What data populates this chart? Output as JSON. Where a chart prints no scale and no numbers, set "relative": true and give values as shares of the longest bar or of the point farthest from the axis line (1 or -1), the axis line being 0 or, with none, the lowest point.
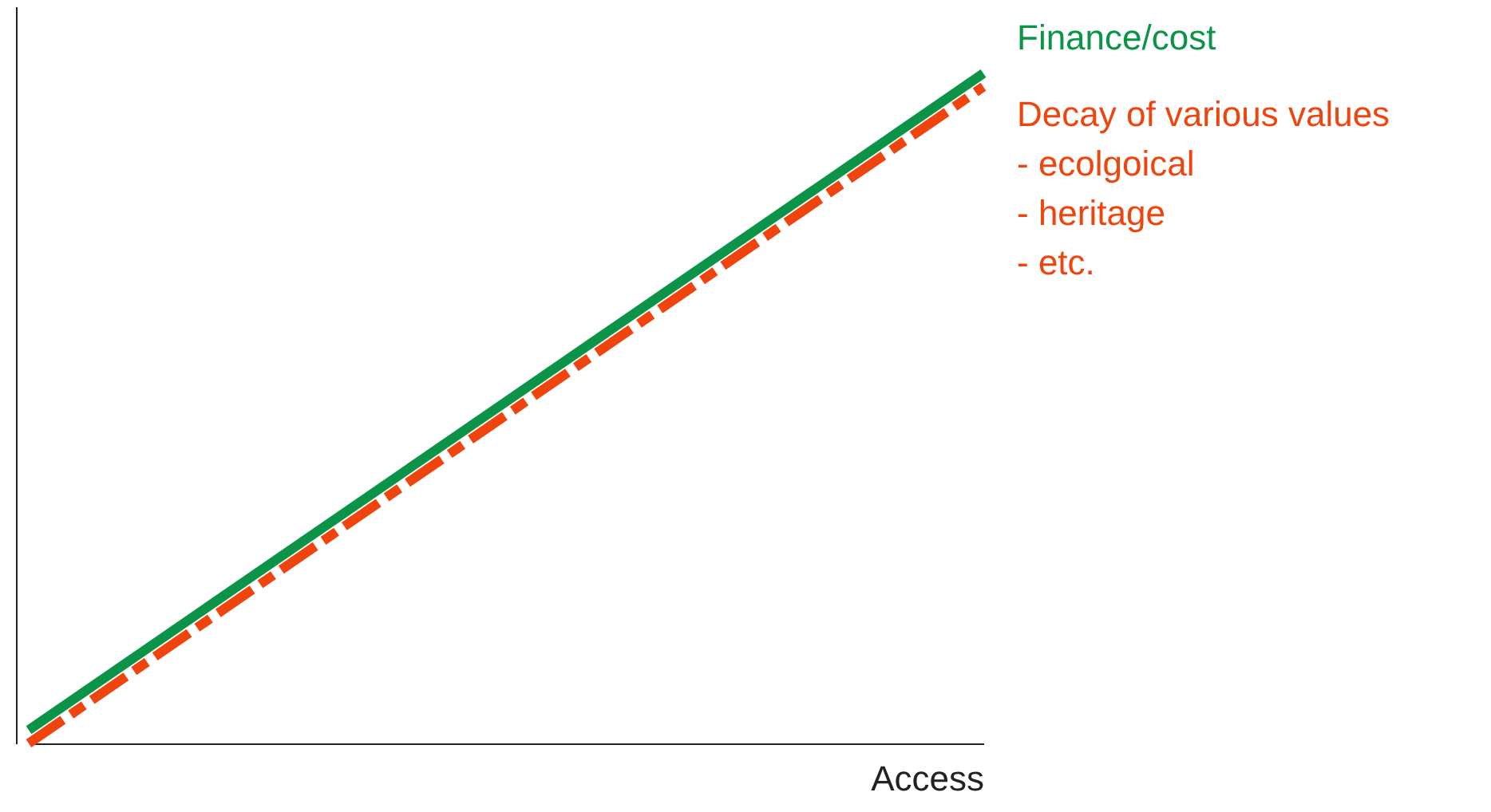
{
  "chart_data": {
    "type": "line",
    "relative": true,
    "xlabel": "Access",
    "categories": [
      null,
      null
    ],
    "series": [
      {
        "name": "Finance/cost",
        "color": "#0b9447",
        "values": [
          0.02,
          1
        ],
        "line_style": "solid"
      },
      {
        "name": "Decay of various values",
        "color": "#f0440e",
        "values": [
          0,
          0.98
        ],
        "line_style": "dashed"
      }
    ],
    "annotations": [
      "- ecolgoical",
      "- heritage",
      "- etc."
    ]
  }
}
